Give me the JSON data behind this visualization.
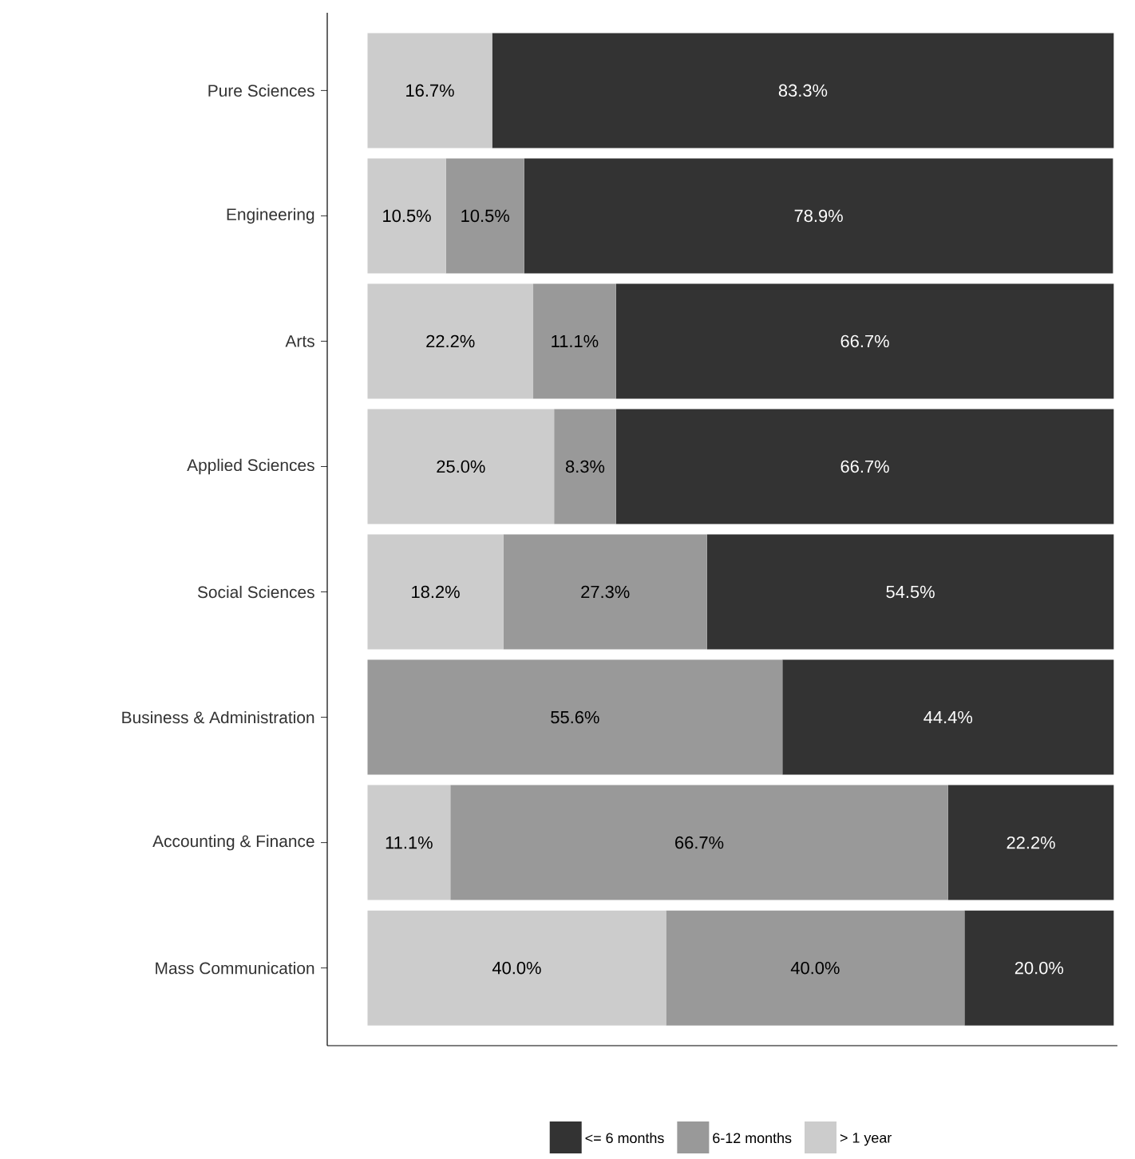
{
  "chart_data": {
    "type": "bar",
    "orientation": "horizontal",
    "stacked": true,
    "legend": "bottom",
    "grid": false,
    "tick_labels": "y",
    "categories": [
      "Pure Sciences",
      "Engineering",
      "Arts",
      "Applied Sciences",
      "Social Sciences",
      "Business & Administration",
      "Accounting & Finance",
      "Mass Communication"
    ],
    "series": [
      {
        "name": "> 1 year",
        "color": "#cccccc",
        "values": [
          16.7,
          10.5,
          22.2,
          25.0,
          18.2,
          null,
          11.1,
          40.0
        ],
        "value_labels": [
          "16.7%",
          "10.5%",
          "22.2%",
          "25.0%",
          "18.2%",
          null,
          "11.1%",
          "40.0%"
        ]
      },
      {
        "name": "6-12 months",
        "color": "#999999",
        "values": [
          null,
          10.5,
          11.1,
          8.3,
          27.3,
          55.6,
          66.7,
          40.0
        ],
        "value_labels": [
          null,
          "10.5%",
          "11.1%",
          "8.3%",
          "27.3%",
          "55.6%",
          "66.7%",
          "40.0%"
        ]
      },
      {
        "name": "<= 6 months",
        "color": "#333333",
        "values": [
          83.3,
          78.9,
          66.7,
          66.7,
          54.5,
          44.4,
          22.2,
          20.0
        ],
        "value_labels": [
          "83.3%",
          "78.9%",
          "66.7%",
          "66.7%",
          "54.5%",
          "44.4%",
          "22.2%",
          "20.0%"
        ]
      }
    ]
  }
}
